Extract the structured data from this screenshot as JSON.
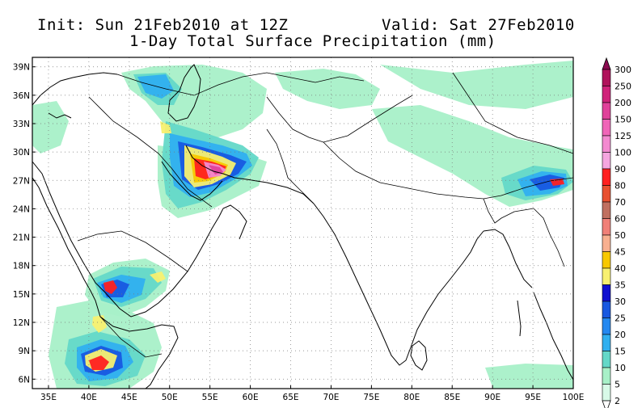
{
  "header": {
    "init_text": "Init: Sun 21Feb2010 at 12Z",
    "valid_text": "Valid: Sat 27Feb2010",
    "title": "1-Day Total Surface Precipitation (mm)"
  },
  "map": {
    "lon_range": [
      33,
      100
    ],
    "lat_range": [
      5,
      40
    ],
    "lon_ticks": [
      "35E",
      "40E",
      "45E",
      "50E",
      "55E",
      "60E",
      "65E",
      "70E",
      "75E",
      "80E",
      "85E",
      "90E",
      "95E",
      "100E"
    ],
    "lon_values": [
      35,
      40,
      45,
      50,
      55,
      60,
      65,
      70,
      75,
      80,
      85,
      90,
      95,
      100
    ],
    "lat_ticks": [
      "6N",
      "9N",
      "12N",
      "15N",
      "18N",
      "21N",
      "24N",
      "27N",
      "30N",
      "33N",
      "36N",
      "39N"
    ],
    "lat_values": [
      6,
      9,
      12,
      15,
      18,
      21,
      24,
      27,
      30,
      33,
      36,
      39
    ],
    "grid": "dotted"
  },
  "colorbar": {
    "levels": [
      "300",
      "250",
      "200",
      "150",
      "125",
      "100",
      "90",
      "80",
      "70",
      "60",
      "50",
      "45",
      "40",
      "35",
      "30",
      "25",
      "20",
      "15",
      "10",
      "5",
      "2"
    ],
    "colors": [
      "#8b0a50",
      "#b0125b",
      "#d0237a",
      "#e0419a",
      "#f065b8",
      "#f38ad0",
      "#f5a6df",
      "#ff2020",
      "#e85030",
      "#c07060",
      "#f08078",
      "#f8b090",
      "#f8c800",
      "#f8f070",
      "#1010d0",
      "#1858e0",
      "#2488f0",
      "#30b0f0",
      "#64d8c8",
      "#a8f0c8",
      "#d8fae8"
    ]
  },
  "precip_colors": {
    "light": "#a8f0c8",
    "mid": "#64d8c8",
    "blue": "#30b0f0",
    "dark_blue": "#1858e0",
    "deep_blue": "#1010d0",
    "yellow": "#f8f070",
    "orange": "#f8c800",
    "red": "#ff2020",
    "pink": "#f38ad0",
    "magenta": "#e0419a"
  }
}
